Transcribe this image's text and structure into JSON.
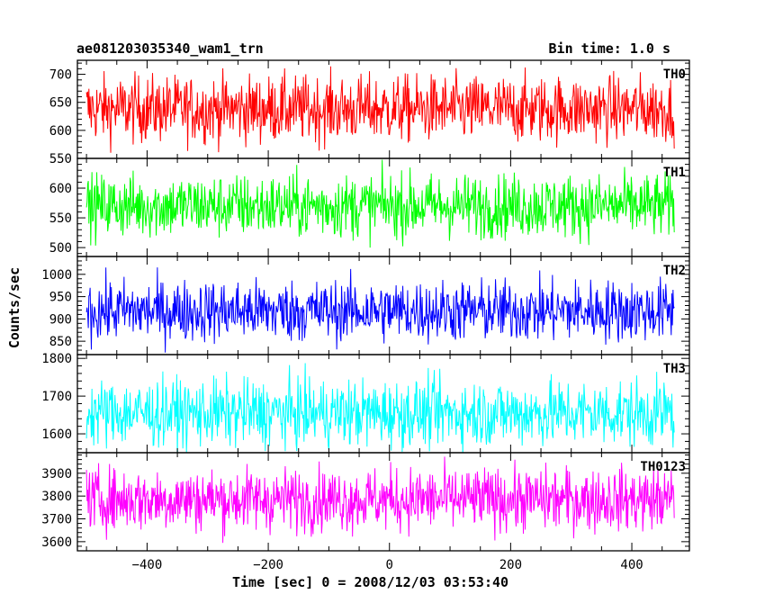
{
  "header": {
    "title": "ae081203035340_wam1_trn",
    "bin_time": "Bin time: 1.0 s"
  },
  "chart_data": {
    "type": "line",
    "title": "ae081203035340_wam1_trn",
    "subtitle": "Bin time: 1.0 s",
    "xlabel": "Time [sec] 0 = 2008/12/03 03:53:40",
    "ylabel": "Counts/sec",
    "xlim": [
      -515,
      495
    ],
    "x_range": [
      -500,
      470
    ],
    "x_step": 1,
    "xticks": [
      -400,
      -200,
      0,
      200,
      400
    ],
    "grid": false,
    "legend": "none",
    "panels": [
      {
        "name": "TH0",
        "color": "#ff0000",
        "ylim": [
          550,
          725
        ],
        "yticks": [
          550,
          600,
          650,
          700
        ],
        "mean": 638,
        "spread": 30
      },
      {
        "name": "TH1",
        "color": "#00ff00",
        "ylim": [
          485,
          650
        ],
        "yticks": [
          500,
          550,
          600
        ],
        "mean": 570,
        "spread": 27
      },
      {
        "name": "TH2",
        "color": "#0000ff",
        "ylim": [
          820,
          1040
        ],
        "yticks": [
          850,
          900,
          950,
          1000
        ],
        "mean": 918,
        "spread": 35
      },
      {
        "name": "TH3",
        "color": "#00ffff",
        "ylim": [
          1550,
          1810
        ],
        "yticks": [
          1600,
          1700,
          1800
        ],
        "mean": 1655,
        "spread": 45
      },
      {
        "name": "TH0123",
        "color": "#ff00ff",
        "ylim": [
          3560,
          3990
        ],
        "yticks": [
          3600,
          3700,
          3800,
          3900
        ],
        "mean": 3785,
        "spread": 70
      }
    ]
  }
}
